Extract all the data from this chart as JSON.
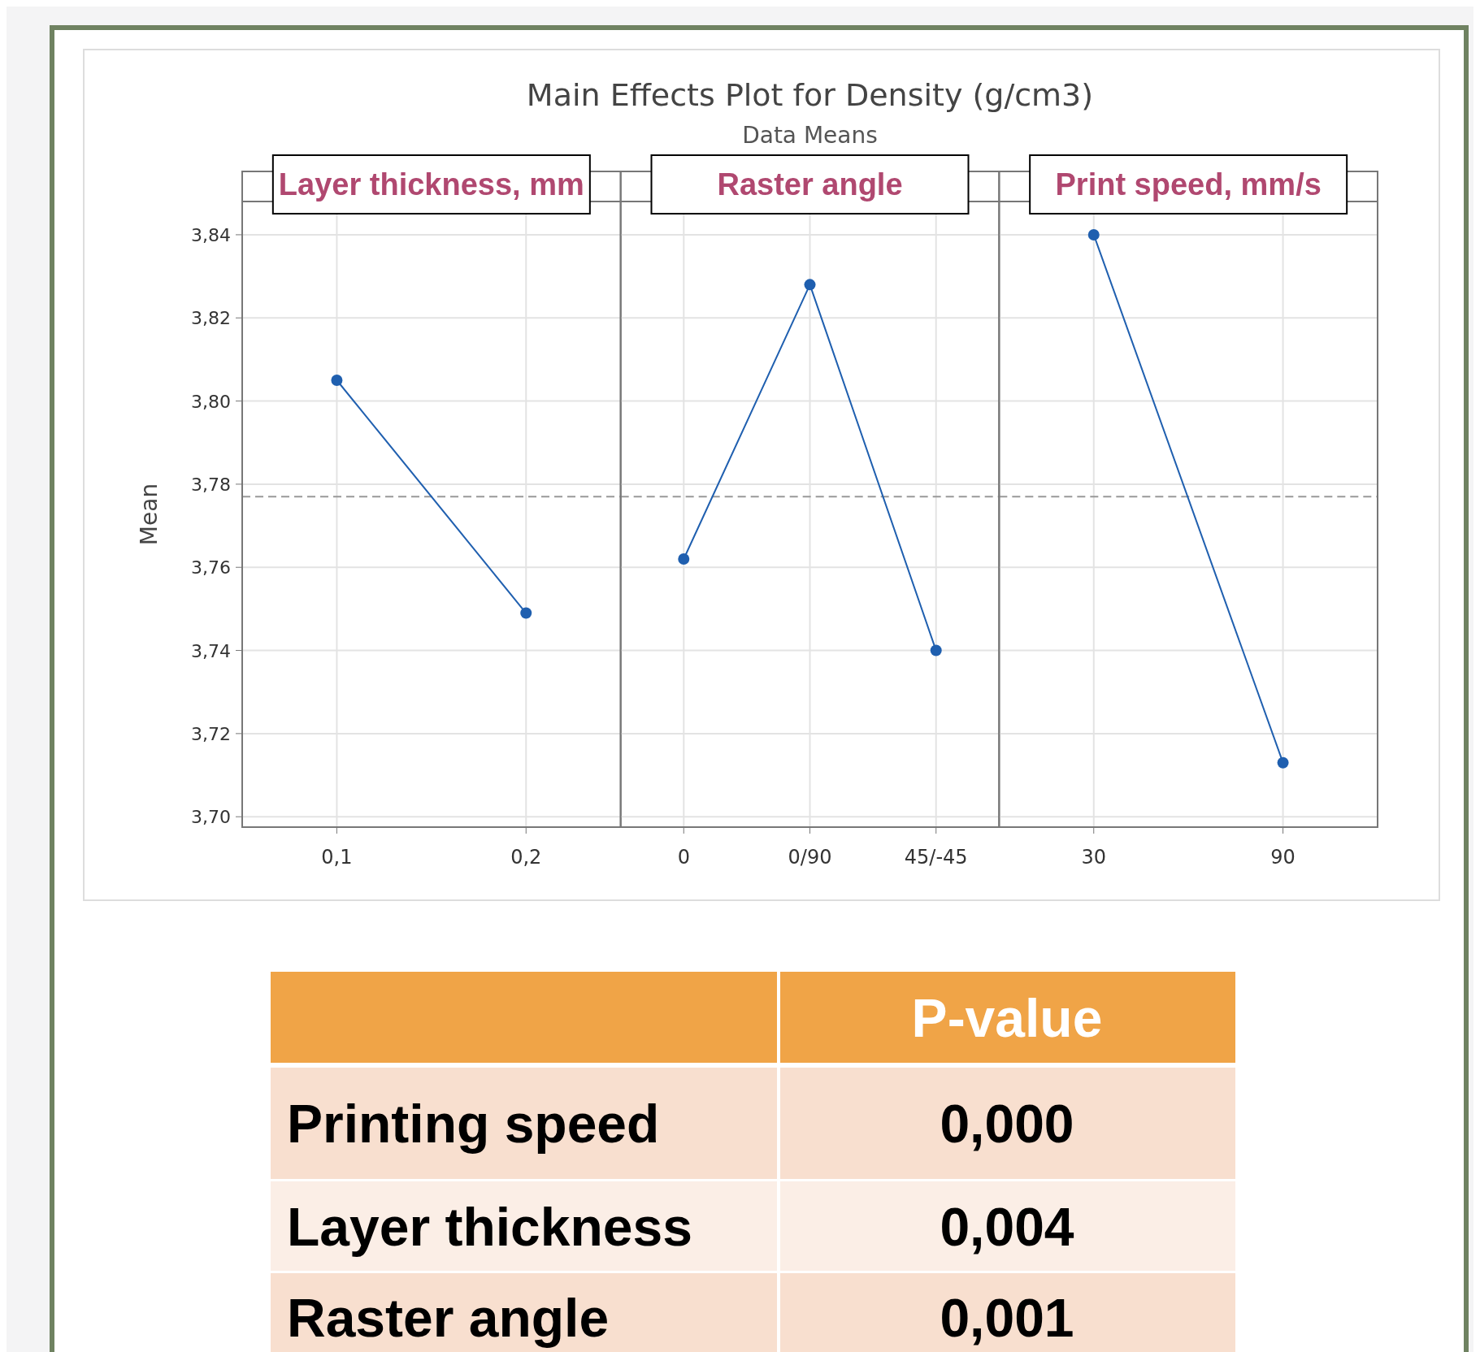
{
  "chart_data": [
    {
      "type": "other",
      "title": "Main Effects Plot for Density (g/cm3)",
      "subtitle": "Data Means"
    },
    {
      "type": "line",
      "title": "Layer thickness, mm",
      "ylabel": "Mean",
      "categories": [
        "0,1",
        "0,2"
      ],
      "series": [
        {
          "color": "#1f5faf",
          "values": [
            3.805,
            3.749
          ]
        }
      ],
      "ylim": [
        3.6975,
        3.848
      ],
      "yticks": [
        {
          "value": 3.7,
          "label": "3,70"
        },
        {
          "value": 3.72,
          "label": "3,72"
        },
        {
          "value": 3.74,
          "label": "3,74"
        },
        {
          "value": 3.76,
          "label": "3,76"
        },
        {
          "value": 3.78,
          "label": "3,78"
        },
        {
          "value": 3.8,
          "label": "3,80"
        },
        {
          "value": 3.82,
          "label": "3,82"
        },
        {
          "value": 3.84,
          "label": "3,84"
        }
      ],
      "grid": true,
      "marker": "circle",
      "line_style": "solid",
      "ref_lines": [
        {
          "axis": "y",
          "value": 3.777,
          "color": "#999999",
          "line_style": "dashed"
        }
      ]
    },
    {
      "type": "line",
      "title": "Raster angle",
      "categories": [
        "0",
        "0/90",
        "45/-45"
      ],
      "series": [
        {
          "color": "#1f5faf",
          "values": [
            3.762,
            3.828,
            3.74
          ]
        }
      ],
      "ylim": [
        3.6975,
        3.848
      ],
      "yticks": [
        {
          "value": 3.7,
          "label": null
        },
        {
          "value": 3.72,
          "label": null
        },
        {
          "value": 3.74,
          "label": null
        },
        {
          "value": 3.76,
          "label": null
        },
        {
          "value": 3.78,
          "label": null
        },
        {
          "value": 3.8,
          "label": null
        },
        {
          "value": 3.82,
          "label": null
        },
        {
          "value": 3.84,
          "label": null
        }
      ],
      "tick_labels": "x",
      "grid": true,
      "marker": "circle",
      "line_style": "solid",
      "ref_lines": [
        {
          "axis": "y",
          "value": 3.777,
          "color": "#999999",
          "line_style": "dashed"
        }
      ]
    },
    {
      "type": "line",
      "title": "Print speed, mm/s",
      "categories": [
        "30",
        "90"
      ],
      "series": [
        {
          "color": "#1f5faf",
          "values": [
            3.84,
            3.713
          ]
        }
      ],
      "ylim": [
        3.6975,
        3.848
      ],
      "yticks": [
        {
          "value": 3.7,
          "label": null
        },
        {
          "value": 3.72,
          "label": null
        },
        {
          "value": 3.74,
          "label": null
        },
        {
          "value": 3.76,
          "label": null
        },
        {
          "value": 3.78,
          "label": null
        },
        {
          "value": 3.8,
          "label": null
        },
        {
          "value": 3.82,
          "label": null
        },
        {
          "value": 3.84,
          "label": null
        }
      ],
      "tick_labels": "x",
      "grid": true,
      "marker": "circle",
      "line_style": "solid",
      "ref_lines": [
        {
          "axis": "y",
          "value": 3.777,
          "color": "#999999",
          "line_style": "dashed"
        }
      ]
    },
    {
      "type": "other",
      "annotations": [
        "P-value",
        "Printing speed",
        "0,000",
        "Layer thickness",
        "0,004",
        "Raster angle",
        "0,001"
      ]
    }
  ]
}
